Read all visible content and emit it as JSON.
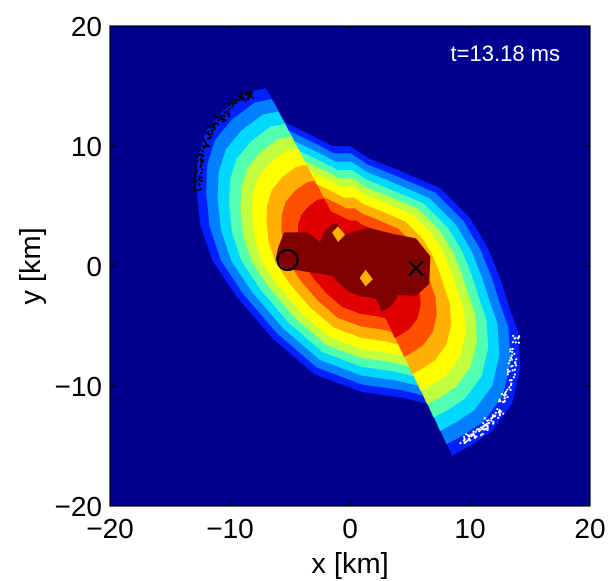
{
  "chart_data": {
    "type": "contour",
    "title": "",
    "xlabel": "x [km]",
    "ylabel": "y [km]",
    "xlim": [
      -20,
      20
    ],
    "ylim": [
      -20,
      20
    ],
    "xticks": [
      -20,
      -10,
      0,
      10,
      20
    ],
    "yticks": [
      -20,
      -10,
      0,
      10,
      20
    ],
    "xtick_labels": [
      "−20",
      "−10",
      "0",
      "10",
      "20"
    ],
    "ytick_labels": [
      "−20",
      "−10",
      "0",
      "10",
      "20"
    ],
    "annotation": "t=13.18 ms",
    "background_color": "#00008f",
    "levels": [
      {
        "level": 1,
        "color": "#0020ff",
        "scale": 1.0
      },
      {
        "level": 2,
        "color": "#0080ff",
        "scale": 0.94
      },
      {
        "level": 3,
        "color": "#00d8ff",
        "scale": 0.87
      },
      {
        "level": 4,
        "color": "#50ffb0",
        "scale": 0.8
      },
      {
        "level": 5,
        "color": "#c0ff40",
        "scale": 0.73
      },
      {
        "level": 6,
        "color": "#ffff00",
        "scale": 0.66
      },
      {
        "level": 7,
        "color": "#ffb000",
        "scale": 0.57
      },
      {
        "level": 8,
        "color": "#ff5000",
        "scale": 0.48
      },
      {
        "level": 9,
        "color": "#e00000",
        "scale": 0.38
      },
      {
        "level": 10,
        "color": "#800000",
        "scale": 0.24
      }
    ],
    "outer_contour": [
      [
        -12.8,
        6.5
      ],
      [
        -12.7,
        9.0
      ],
      [
        -12.0,
        11.2
      ],
      [
        -10.5,
        13.0
      ],
      [
        -8.5,
        14.5
      ],
      [
        -7.0,
        14.8
      ],
      [
        -6.3,
        13.6
      ],
      [
        -5.5,
        12.0
      ],
      [
        -3.0,
        10.8
      ],
      [
        -1.5,
        10.0
      ],
      [
        0.0,
        10.0
      ],
      [
        1.5,
        9.0
      ],
      [
        4.0,
        8.0
      ],
      [
        7.5,
        6.5
      ],
      [
        10.0,
        4.0
      ],
      [
        11.5,
        1.5
      ],
      [
        12.5,
        -1.0
      ],
      [
        13.3,
        -3.5
      ],
      [
        14.0,
        -5.5
      ],
      [
        14.2,
        -8.5
      ],
      [
        13.5,
        -11.5
      ],
      [
        11.8,
        -13.8
      ],
      [
        10.0,
        -15.0
      ],
      [
        8.5,
        -15.8
      ],
      [
        7.7,
        -14.0
      ],
      [
        6.5,
        -11.5
      ],
      [
        4.5,
        -11.0
      ],
      [
        1.0,
        -10.5
      ],
      [
        -3.0,
        -9.0
      ],
      [
        -6.5,
        -6.0
      ],
      [
        -9.5,
        -2.5
      ],
      [
        -11.5,
        0.5
      ],
      [
        -12.5,
        3.5
      ]
    ],
    "core_blobs": [
      {
        "level": 10,
        "color": "#800000",
        "points": [
          [
            -6.0,
            1.5
          ],
          [
            -5.5,
            2.8
          ],
          [
            -3.5,
            2.8
          ],
          [
            -2.5,
            2.0
          ],
          [
            -1.0,
            2.5
          ],
          [
            1.5,
            3.2
          ],
          [
            3.5,
            2.7
          ],
          [
            5.5,
            2.3
          ],
          [
            6.7,
            0.8
          ],
          [
            6.6,
            -1.5
          ],
          [
            5.5,
            -2.5
          ],
          [
            3.5,
            -2.4
          ],
          [
            1.5,
            -2.4
          ],
          [
            0.5,
            -1.5
          ],
          [
            -1.5,
            -0.8
          ],
          [
            -3.5,
            -0.5
          ],
          [
            -5.5,
            -0.2
          ],
          [
            -6.2,
            0.5
          ]
        ]
      },
      {
        "level": 7,
        "color": "#ffb000",
        "points": [
          [
            -1.5,
            2.8
          ],
          [
            -1.0,
            3.3
          ],
          [
            -0.4,
            2.6
          ],
          [
            -1.0,
            2.0
          ]
        ]
      },
      {
        "level": 7,
        "color": "#ffb000",
        "points": [
          [
            0.8,
            -1.0
          ],
          [
            1.3,
            -0.3
          ],
          [
            1.9,
            -1.1
          ],
          [
            1.3,
            -1.7
          ]
        ]
      }
    ],
    "markers": [
      {
        "symbol": "circle",
        "x": -5.2,
        "y": 0.5
      },
      {
        "symbol": "cross",
        "x": 5.5,
        "y": -0.2
      }
    ],
    "particle_streams": [
      {
        "color": "#000000",
        "count": 150,
        "points": [
          [
            -12.8,
            6.5
          ],
          [
            -12.5,
            9.0
          ],
          [
            -11.5,
            11.5
          ],
          [
            -10.0,
            13.3
          ],
          [
            -8.0,
            14.6
          ]
        ]
      },
      {
        "color": "#ffffff",
        "count": 140,
        "points": [
          [
            13.8,
            -5.8
          ],
          [
            13.4,
            -9.5
          ],
          [
            12.5,
            -12.0
          ],
          [
            11.0,
            -13.6
          ],
          [
            9.5,
            -14.5
          ]
        ]
      }
    ]
  }
}
